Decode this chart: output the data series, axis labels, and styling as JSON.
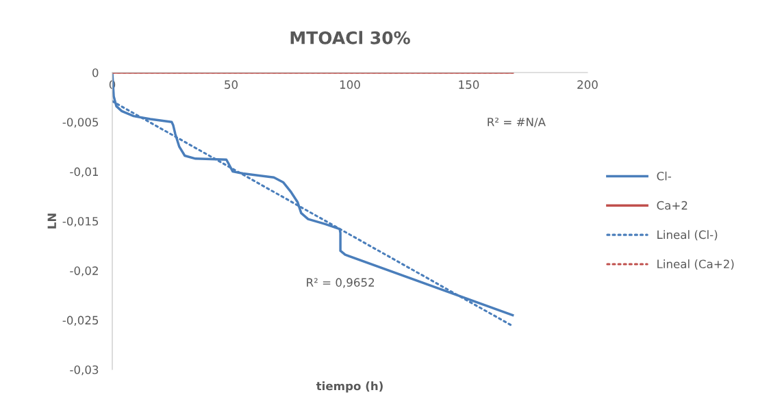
{
  "chart_data": {
    "type": "line",
    "title": "MTOACl 30%",
    "xlabel": "tiempo (h)",
    "ylabel": "LN",
    "xlim": [
      0,
      200
    ],
    "xticks": [
      0,
      50,
      100,
      150,
      200
    ],
    "ylim": [
      -0.03,
      0
    ],
    "yticks": [
      {
        "value": -0.03,
        "label": "-0,03"
      },
      {
        "value": -0.025,
        "label": "-0,025"
      },
      {
        "value": -0.02,
        "label": "-0,02"
      },
      {
        "value": -0.015,
        "label": "-0,015"
      },
      {
        "value": -0.01,
        "label": "-0,01"
      },
      {
        "value": -0.005,
        "label": "-0,005"
      },
      {
        "value": 0,
        "label": "0"
      }
    ],
    "grid": false,
    "legend": "right",
    "marker": "none",
    "series": [
      {
        "name": "Cl-",
        "color": "#4a7ebb",
        "line_style": "solid",
        "x": [
          0,
          0.6,
          1.7,
          4,
          9,
          16,
          25,
          25.6,
          26.5,
          28.2,
          30.5,
          35,
          48,
          48.7,
          50.7,
          55,
          68,
          72,
          75,
          78,
          79.5,
          82.4,
          89.6,
          95.7,
          96,
          96,
          98,
          168.5
        ],
        "values": [
          0,
          -0.0024,
          -0.0034,
          -0.0039,
          -0.0044,
          -0.0047,
          -0.005,
          -0.0053,
          -0.0062,
          -0.0075,
          -0.0084,
          -0.0087,
          -0.0088,
          -0.0091,
          -0.01,
          -0.0102,
          -0.0106,
          -0.0111,
          -0.012,
          -0.0131,
          -0.0142,
          -0.0148,
          -0.0153,
          -0.0158,
          -0.0162,
          -0.018,
          -0.0184,
          -0.0245
        ]
      },
      {
        "name": "Ca+2",
        "color": "#c0504d",
        "line_style": "solid",
        "x": [
          0,
          168.5
        ],
        "values": [
          0,
          0
        ]
      },
      {
        "name": "Lineal (Cl-)",
        "color": "#4a7ebb",
        "line_style": "dotted",
        "x": [
          0,
          168.5
        ],
        "values": [
          -0.0029,
          -0.0256
        ]
      },
      {
        "name": "Lineal (Ca+2)",
        "color": "#c0504d",
        "line_style": "dotted",
        "x": [
          0,
          168.5
        ],
        "values": [
          0,
          0
        ]
      }
    ],
    "annotations": [
      "R² = #N/A",
      "R² = 0,9652"
    ]
  }
}
